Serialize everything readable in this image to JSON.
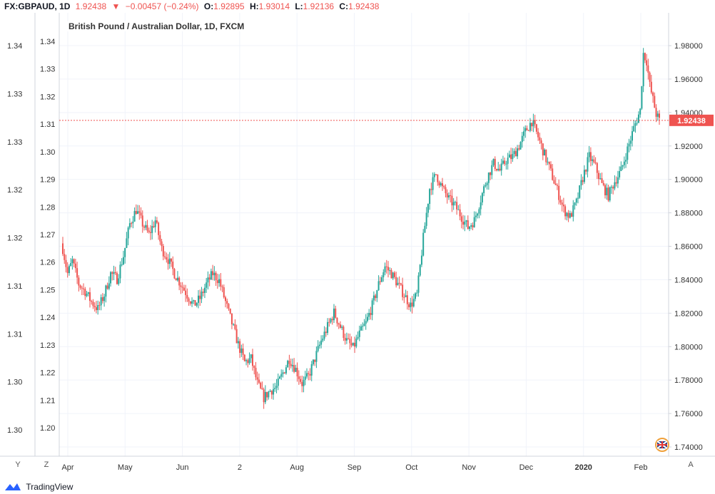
{
  "header": {
    "symbol": "FX:GBPAUD, 1D",
    "last": "1.92438",
    "arrow": "▼",
    "change": "−0.00457 (−0.24%)",
    "open_label": "O:",
    "open": "1.92895",
    "high_label": "H:",
    "high": "1.93014",
    "low_label": "L:",
    "low": "1.92136",
    "close_label": "C:",
    "close": "1.92438"
  },
  "subtitle": "British Pound / Australian Dollar, 1D, FXCM",
  "price_badge": "1.92438",
  "buttons": {
    "y": "Y",
    "z": "Z",
    "a": "A"
  },
  "footer": {
    "brand": "TradingView"
  },
  "colors": {
    "up": "#26a69a",
    "down": "#ef5350",
    "grid": "#f0f3fa",
    "axis": "#d1d4dc"
  },
  "chart_data": {
    "type": "candlestick",
    "title": "British Pound / Australian Dollar, 1D, FXCM",
    "x_tick_labels": [
      "Apr",
      "May",
      "Jun",
      "2",
      "Aug",
      "Sep",
      "Oct",
      "Nov",
      "Dec",
      "2020",
      "Feb"
    ],
    "right_axis": {
      "ticks": [
        "1.98000",
        "1.96000",
        "1.94000",
        "1.92000",
        "1.90000",
        "1.88000",
        "1.86000",
        "1.84000",
        "1.82000",
        "1.80000",
        "1.78000",
        "1.76000",
        "1.74000"
      ],
      "range": [
        1.735,
        1.985
      ]
    },
    "inner_axis": {
      "ticks": [
        "1.34",
        "1.33",
        "1.32",
        "1.31",
        "1.30",
        "1.29",
        "1.28",
        "1.27",
        "1.26",
        "1.25",
        "1.24",
        "1.23",
        "1.22",
        "1.21",
        "1.20"
      ]
    },
    "left_axis": {
      "ticks": [
        "1.34",
        "1.33",
        "1.33",
        "1.32",
        "1.32",
        "1.31",
        "1.31",
        "1.30",
        "1.30"
      ]
    },
    "last_price": 1.92438,
    "close_path": [
      [
        0,
        1.852
      ],
      [
        3,
        1.838
      ],
      [
        6,
        1.845
      ],
      [
        10,
        1.832
      ],
      [
        14,
        1.828
      ],
      [
        18,
        1.822
      ],
      [
        22,
        1.818
      ],
      [
        26,
        1.826
      ],
      [
        30,
        1.838
      ],
      [
        34,
        1.835
      ],
      [
        38,
        1.848
      ],
      [
        42,
        1.866
      ],
      [
        46,
        1.874
      ],
      [
        50,
        1.866
      ],
      [
        54,
        1.86
      ],
      [
        58,
        1.868
      ],
      [
        62,
        1.852
      ],
      [
        66,
        1.846
      ],
      [
        70,
        1.838
      ],
      [
        74,
        1.832
      ],
      [
        78,
        1.826
      ],
      [
        82,
        1.82
      ],
      [
        86,
        1.824
      ],
      [
        90,
        1.832
      ],
      [
        94,
        1.838
      ],
      [
        98,
        1.834
      ],
      [
        102,
        1.822
      ],
      [
        106,
        1.81
      ],
      [
        110,
        1.798
      ],
      [
        114,
        1.788
      ],
      [
        118,
        1.79
      ],
      [
        122,
        1.776
      ],
      [
        126,
        1.768
      ],
      [
        130,
        1.772
      ],
      [
        134,
        1.774
      ],
      [
        138,
        1.782
      ],
      [
        142,
        1.79
      ],
      [
        146,
        1.784
      ],
      [
        150,
        1.776
      ],
      [
        154,
        1.78
      ],
      [
        158,
        1.79
      ],
      [
        162,
        1.8
      ],
      [
        166,
        1.808
      ],
      [
        170,
        1.816
      ],
      [
        174,
        1.808
      ],
      [
        178,
        1.8
      ],
      [
        182,
        1.796
      ],
      [
        186,
        1.804
      ],
      [
        190,
        1.81
      ],
      [
        194,
        1.82
      ],
      [
        198,
        1.832
      ],
      [
        202,
        1.842
      ],
      [
        206,
        1.838
      ],
      [
        210,
        1.832
      ],
      [
        214,
        1.826
      ],
      [
        218,
        1.82
      ],
      [
        222,
        1.826
      ],
      [
        226,
        1.858
      ],
      [
        230,
        1.886
      ],
      [
        234,
        1.894
      ],
      [
        238,
        1.886
      ],
      [
        242,
        1.88
      ],
      [
        246,
        1.876
      ],
      [
        250,
        1.87
      ],
      [
        254,
        1.864
      ],
      [
        258,
        1.868
      ],
      [
        262,
        1.88
      ],
      [
        266,
        1.892
      ],
      [
        270,
        1.9
      ],
      [
        274,
        1.896
      ],
      [
        278,
        1.902
      ],
      [
        282,
        1.904
      ],
      [
        286,
        1.91
      ],
      [
        290,
        1.918
      ],
      [
        294,
        1.924
      ],
      [
        298,
        1.915
      ],
      [
        302,
        1.905
      ],
      [
        306,
        1.895
      ],
      [
        310,
        1.885
      ],
      [
        314,
        1.874
      ],
      [
        318,
        1.87
      ],
      [
        322,
        1.878
      ],
      [
        326,
        1.892
      ],
      [
        330,
        1.904
      ],
      [
        334,
        1.898
      ],
      [
        338,
        1.888
      ],
      [
        342,
        1.882
      ],
      [
        346,
        1.89
      ],
      [
        350,
        1.896
      ],
      [
        354,
        1.908
      ],
      [
        358,
        1.92
      ],
      [
        362,
        1.93
      ],
      [
        364,
        1.962
      ],
      [
        366,
        1.958
      ],
      [
        368,
        1.944
      ],
      [
        370,
        1.936
      ],
      [
        372,
        1.928
      ],
      [
        374,
        1.924
      ]
    ]
  }
}
